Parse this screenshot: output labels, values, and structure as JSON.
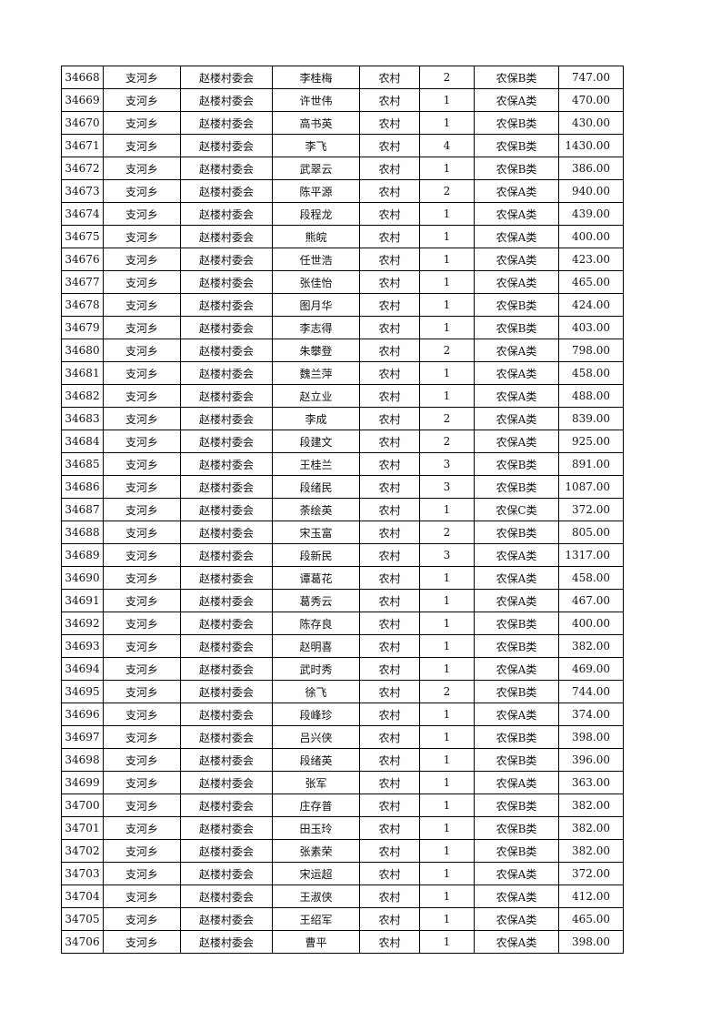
{
  "rows": [
    [
      "34668",
      "支河乡",
      "赵楼村委会",
      "李桂梅",
      "农村",
      "2",
      "农保B类",
      "747.00"
    ],
    [
      "34669",
      "支河乡",
      "赵楼村委会",
      "许世伟",
      "农村",
      "1",
      "农保A类",
      "470.00"
    ],
    [
      "34670",
      "支河乡",
      "赵楼村委会",
      "高书英",
      "农村",
      "1",
      "农保B类",
      "430.00"
    ],
    [
      "34671",
      "支河乡",
      "赵楼村委会",
      "李飞",
      "农村",
      "4",
      "农保B类",
      "1430.00"
    ],
    [
      "34672",
      "支河乡",
      "赵楼村委会",
      "武翠云",
      "农村",
      "1",
      "农保B类",
      "386.00"
    ],
    [
      "34673",
      "支河乡",
      "赵楼村委会",
      "陈平源",
      "农村",
      "2",
      "农保A类",
      "940.00"
    ],
    [
      "34674",
      "支河乡",
      "赵楼村委会",
      "段程龙",
      "农村",
      "1",
      "农保A类",
      "439.00"
    ],
    [
      "34675",
      "支河乡",
      "赵楼村委会",
      "熊皖",
      "农村",
      "1",
      "农保A类",
      "400.00"
    ],
    [
      "34676",
      "支河乡",
      "赵楼村委会",
      "任世浩",
      "农村",
      "1",
      "农保A类",
      "423.00"
    ],
    [
      "34677",
      "支河乡",
      "赵楼村委会",
      "张佳怡",
      "农村",
      "1",
      "农保A类",
      "465.00"
    ],
    [
      "34678",
      "支河乡",
      "赵楼村委会",
      "图月华",
      "农村",
      "1",
      "农保B类",
      "424.00"
    ],
    [
      "34679",
      "支河乡",
      "赵楼村委会",
      "李志得",
      "农村",
      "1",
      "农保B类",
      "403.00"
    ],
    [
      "34680",
      "支河乡",
      "赵楼村委会",
      "朱攀登",
      "农村",
      "2",
      "农保A类",
      "798.00"
    ],
    [
      "34681",
      "支河乡",
      "赵楼村委会",
      "魏兰萍",
      "农村",
      "1",
      "农保A类",
      "458.00"
    ],
    [
      "34682",
      "支河乡",
      "赵楼村委会",
      "赵立业",
      "农村",
      "1",
      "农保A类",
      "488.00"
    ],
    [
      "34683",
      "支河乡",
      "赵楼村委会",
      "李成",
      "农村",
      "2",
      "农保A类",
      "839.00"
    ],
    [
      "34684",
      "支河乡",
      "赵楼村委会",
      "段建文",
      "农村",
      "2",
      "农保A类",
      "925.00"
    ],
    [
      "34685",
      "支河乡",
      "赵楼村委会",
      "王桂兰",
      "农村",
      "3",
      "农保B类",
      "891.00"
    ],
    [
      "34686",
      "支河乡",
      "赵楼村委会",
      "段绪民",
      "农村",
      "3",
      "农保B类",
      "1087.00"
    ],
    [
      "34687",
      "支河乡",
      "赵楼村委会",
      "荼绘英",
      "农村",
      "1",
      "农保C类",
      "372.00"
    ],
    [
      "34688",
      "支河乡",
      "赵楼村委会",
      "宋玉富",
      "农村",
      "2",
      "农保B类",
      "805.00"
    ],
    [
      "34689",
      "支河乡",
      "赵楼村委会",
      "段新民",
      "农村",
      "3",
      "农保A类",
      "1317.00"
    ],
    [
      "34690",
      "支河乡",
      "赵楼村委会",
      "谭葛花",
      "农村",
      "1",
      "农保A类",
      "458.00"
    ],
    [
      "34691",
      "支河乡",
      "赵楼村委会",
      "葛秀云",
      "农村",
      "1",
      "农保A类",
      "467.00"
    ],
    [
      "34692",
      "支河乡",
      "赵楼村委会",
      "陈存良",
      "农村",
      "1",
      "农保B类",
      "400.00"
    ],
    [
      "34693",
      "支河乡",
      "赵楼村委会",
      "赵明喜",
      "农村",
      "1",
      "农保B类",
      "382.00"
    ],
    [
      "34694",
      "支河乡",
      "赵楼村委会",
      "武时秀",
      "农村",
      "1",
      "农保A类",
      "469.00"
    ],
    [
      "34695",
      "支河乡",
      "赵楼村委会",
      "徐飞",
      "农村",
      "2",
      "农保B类",
      "744.00"
    ],
    [
      "34696",
      "支河乡",
      "赵楼村委会",
      "段峰珍",
      "农村",
      "1",
      "农保A类",
      "374.00"
    ],
    [
      "34697",
      "支河乡",
      "赵楼村委会",
      "吕兴侠",
      "农村",
      "1",
      "农保B类",
      "398.00"
    ],
    [
      "34698",
      "支河乡",
      "赵楼村委会",
      "段绪英",
      "农村",
      "1",
      "农保B类",
      "396.00"
    ],
    [
      "34699",
      "支河乡",
      "赵楼村委会",
      "张军",
      "农村",
      "1",
      "农保A类",
      "363.00"
    ],
    [
      "34700",
      "支河乡",
      "赵楼村委会",
      "庄存普",
      "农村",
      "1",
      "农保B类",
      "382.00"
    ],
    [
      "34701",
      "支河乡",
      "赵楼村委会",
      "田玉玲",
      "农村",
      "1",
      "农保B类",
      "382.00"
    ],
    [
      "34702",
      "支河乡",
      "赵楼村委会",
      "张素荣",
      "农村",
      "1",
      "农保B类",
      "382.00"
    ],
    [
      "34703",
      "支河乡",
      "赵楼村委会",
      "宋运超",
      "农村",
      "1",
      "农保A类",
      "372.00"
    ],
    [
      "34704",
      "支河乡",
      "赵楼村委会",
      "王淑侠",
      "农村",
      "1",
      "农保A类",
      "412.00"
    ],
    [
      "34705",
      "支河乡",
      "赵楼村委会",
      "王绍军",
      "农村",
      "1",
      "农保A类",
      "465.00"
    ],
    [
      "34706",
      "支河乡",
      "赵楼村委会",
      "曹平",
      "农村",
      "1",
      "农保A类",
      "398.00"
    ]
  ]
}
